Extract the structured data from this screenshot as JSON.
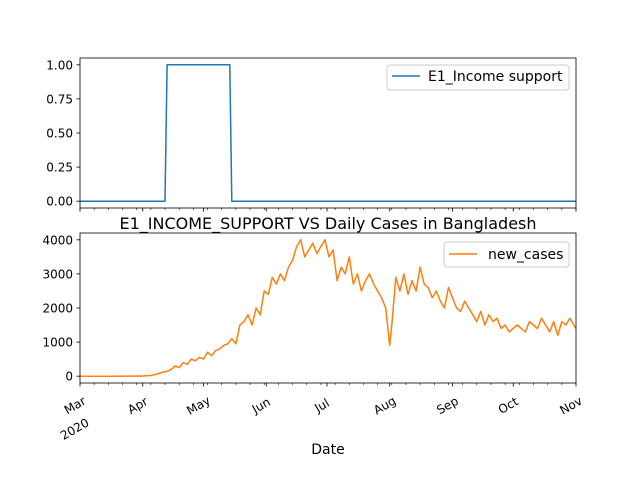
{
  "chart_data": [
    {
      "type": "line",
      "title": "",
      "xlabel": "",
      "ylabel": "",
      "ylim": [
        -0.05,
        1.05
      ],
      "yticks": [
        "0.00",
        "0.25",
        "0.50",
        "0.75",
        "1.00"
      ],
      "ytick_values": [
        0,
        0.25,
        0.5,
        0.75,
        1.0
      ],
      "grid": false,
      "legend_position": "top-right",
      "series": [
        {
          "name": "E1_Income support",
          "color": "#1f77b4",
          "x": [
            "2020-03-01",
            "2020-04-12",
            "2020-04-13",
            "2020-05-14",
            "2020-05-15",
            "2020-11-01"
          ],
          "y": [
            0,
            0,
            1,
            1,
            0,
            0
          ]
        }
      ]
    },
    {
      "type": "line",
      "title": "E1_INCOME_SUPPORT VS Daily Cases in Bangladesh",
      "xlabel": "Date",
      "ylabel": "",
      "ylim": [
        -200,
        4200
      ],
      "yticks": [
        "0",
        "1000",
        "2000",
        "3000",
        "4000"
      ],
      "ytick_values": [
        0,
        1000,
        2000,
        3000,
        4000
      ],
      "xlim": [
        "2020-03-01",
        "2020-11-01"
      ],
      "xticks": [
        "Mar",
        "Apr",
        "May",
        "Jun",
        "Jul",
        "Aug",
        "Sep",
        "Oct",
        "Nov"
      ],
      "xtick_dates": [
        "2020-03-01",
        "2020-04-01",
        "2020-05-01",
        "2020-06-01",
        "2020-07-01",
        "2020-08-01",
        "2020-09-01",
        "2020-10-01",
        "2020-11-01"
      ],
      "xtick_year": "2020",
      "grid": false,
      "legend_position": "top-right",
      "series": [
        {
          "name": "new_cases",
          "color": "#ff7f0e",
          "x": [
            "2020-03-01",
            "2020-03-15",
            "2020-03-31",
            "2020-04-05",
            "2020-04-08",
            "2020-04-11",
            "2020-04-13",
            "2020-04-15",
            "2020-04-17",
            "2020-04-19",
            "2020-04-21",
            "2020-04-23",
            "2020-04-25",
            "2020-04-27",
            "2020-04-29",
            "2020-05-01",
            "2020-05-03",
            "2020-05-05",
            "2020-05-07",
            "2020-05-09",
            "2020-05-11",
            "2020-05-13",
            "2020-05-15",
            "2020-05-17",
            "2020-05-19",
            "2020-05-21",
            "2020-05-23",
            "2020-05-25",
            "2020-05-27",
            "2020-05-29",
            "2020-05-31",
            "2020-06-02",
            "2020-06-04",
            "2020-06-06",
            "2020-06-08",
            "2020-06-10",
            "2020-06-12",
            "2020-06-14",
            "2020-06-16",
            "2020-06-18",
            "2020-06-20",
            "2020-06-22",
            "2020-06-24",
            "2020-06-26",
            "2020-06-28",
            "2020-06-30",
            "2020-07-02",
            "2020-07-04",
            "2020-07-06",
            "2020-07-08",
            "2020-07-10",
            "2020-07-12",
            "2020-07-14",
            "2020-07-16",
            "2020-07-18",
            "2020-07-20",
            "2020-07-22",
            "2020-07-24",
            "2020-07-26",
            "2020-07-28",
            "2020-07-30",
            "2020-08-01",
            "2020-08-02",
            "2020-08-04",
            "2020-08-06",
            "2020-08-08",
            "2020-08-10",
            "2020-08-12",
            "2020-08-14",
            "2020-08-16",
            "2020-08-18",
            "2020-08-20",
            "2020-08-22",
            "2020-08-24",
            "2020-08-26",
            "2020-08-28",
            "2020-08-30",
            "2020-09-01",
            "2020-09-03",
            "2020-09-05",
            "2020-09-07",
            "2020-09-09",
            "2020-09-11",
            "2020-09-13",
            "2020-09-15",
            "2020-09-17",
            "2020-09-19",
            "2020-09-21",
            "2020-09-23",
            "2020-09-25",
            "2020-09-27",
            "2020-09-29",
            "2020-10-01",
            "2020-10-03",
            "2020-10-05",
            "2020-10-07",
            "2020-10-09",
            "2020-10-11",
            "2020-10-13",
            "2020-10-15",
            "2020-10-17",
            "2020-10-19",
            "2020-10-21",
            "2020-10-23",
            "2020-10-25",
            "2020-10-27",
            "2020-10-29",
            "2020-11-01"
          ],
          "y": [
            0,
            0,
            2,
            20,
            60,
            120,
            140,
            200,
            300,
            250,
            400,
            350,
            500,
            450,
            550,
            500,
            700,
            600,
            750,
            800,
            900,
            950,
            1100,
            950,
            1500,
            1600,
            1800,
            1500,
            2000,
            1800,
            2500,
            2400,
            2900,
            2700,
            3000,
            2800,
            3200,
            3400,
            3800,
            4000,
            3500,
            3700,
            3900,
            3600,
            3800,
            4000,
            3500,
            3700,
            2800,
            3200,
            3000,
            3500,
            2700,
            3000,
            2500,
            2800,
            3000,
            2700,
            2500,
            2300,
            2000,
            900,
            1500,
            2900,
            2500,
            3000,
            2400,
            2800,
            2500,
            3200,
            2700,
            2600,
            2300,
            2500,
            2200,
            2000,
            2600,
            2300,
            2000,
            1900,
            2200,
            2000,
            1800,
            1600,
            1900,
            1500,
            1800,
            1600,
            1700,
            1400,
            1500,
            1300,
            1400,
            1500,
            1400,
            1300,
            1600,
            1500,
            1400,
            1700,
            1500,
            1300,
            1600,
            1200,
            1600,
            1500,
            1700,
            1400
          ]
        }
      ]
    }
  ]
}
